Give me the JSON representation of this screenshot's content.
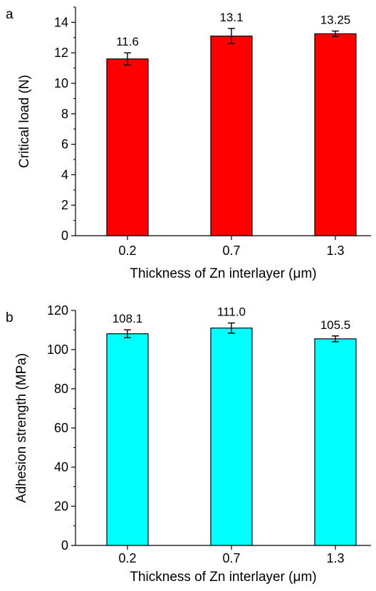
{
  "chart_data": [
    {
      "type": "bar",
      "panel": "a",
      "title": "",
      "xlabel": "Thickness of Zn interlayer (μm)",
      "ylabel": "Critical load (N)",
      "categories": [
        "0.2",
        "0.7",
        "1.3"
      ],
      "values": [
        11.6,
        13.1,
        13.25
      ],
      "errors": [
        0.4,
        0.5,
        0.18
      ],
      "data_labels": [
        "11.6",
        "13.1",
        "13.25"
      ],
      "ylim": [
        0,
        15
      ],
      "yticks": [
        0,
        2,
        4,
        6,
        8,
        10,
        12,
        14
      ],
      "ytick_labels": [
        "0",
        "2",
        "4",
        "6",
        "8",
        "10",
        "12",
        "14"
      ],
      "bar_color": "#ff0000",
      "grid": false,
      "legend": "none"
    },
    {
      "type": "bar",
      "panel": "b",
      "title": "",
      "xlabel": "Thickness of Zn interlayer (μm)",
      "ylabel": "Adhesion strength (MPa)",
      "categories": [
        "0.2",
        "0.7",
        "1.3"
      ],
      "values": [
        108.1,
        111.0,
        105.5
      ],
      "errors": [
        2.0,
        2.6,
        1.5
      ],
      "data_labels": [
        "108.1",
        "111.0",
        "105.5"
      ],
      "ylim": [
        0,
        120
      ],
      "yticks": [
        0,
        20,
        40,
        60,
        80,
        100,
        120
      ],
      "ytick_labels": [
        "0",
        "20",
        "40",
        "60",
        "80",
        "100",
        "120"
      ],
      "bar_color": "#00ffff",
      "grid": false,
      "legend": "none"
    }
  ]
}
